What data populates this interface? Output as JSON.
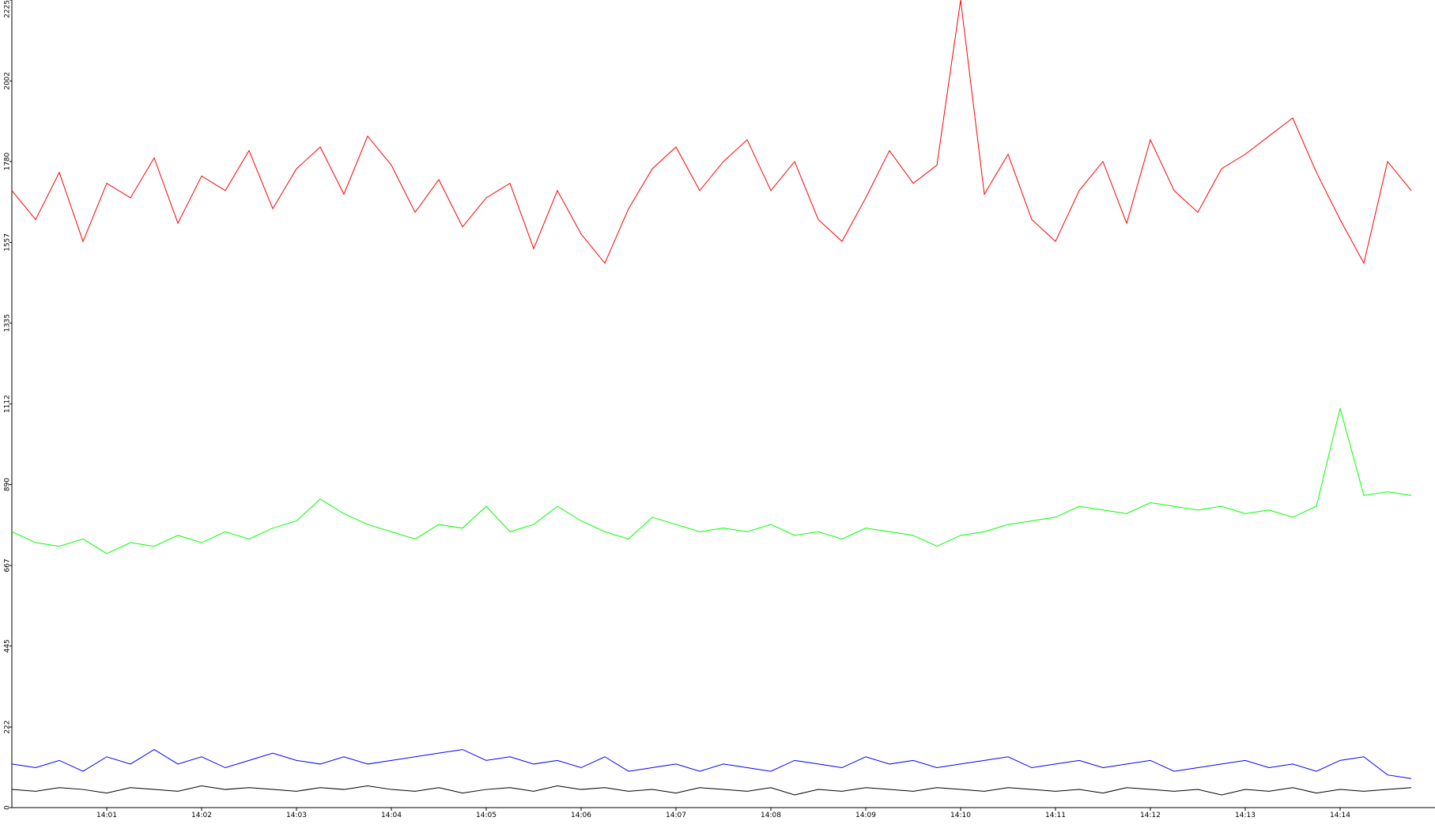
{
  "chart_data": {
    "type": "line",
    "categories": [
      null,
      null,
      null,
      null,
      "14:01",
      null,
      null,
      null,
      "14:02",
      null,
      null,
      null,
      "14:03",
      null,
      null,
      null,
      "14:04",
      null,
      null,
      null,
      "14:05",
      null,
      null,
      null,
      "14:06",
      null,
      null,
      null,
      "14:07",
      null,
      null,
      null,
      "14:08",
      null,
      null,
      null,
      "14:09",
      null,
      null,
      null,
      "14:10",
      null,
      null,
      null,
      "14:11",
      null,
      null,
      null,
      "14:12",
      null,
      null,
      null,
      "14:13",
      null,
      null,
      null,
      "14:14",
      null,
      null,
      null
    ],
    "series": [
      {
        "color": "#ff0000",
        "values": [
          1700,
          1620,
          1750,
          1560,
          1720,
          1680,
          1790,
          1610,
          1740,
          1700,
          1810,
          1650,
          1760,
          1820,
          1690,
          1850,
          1770,
          1640,
          1730,
          1600,
          1680,
          1720,
          1540,
          1700,
          1580,
          1500,
          1650,
          1760,
          1820,
          1700,
          1780,
          1840,
          1700,
          1780,
          1620,
          1560,
          1680,
          1810,
          1720,
          1770,
          2225,
          1690,
          1800,
          1620,
          1560,
          1700,
          1780,
          1610,
          1840,
          1700,
          1640,
          1760,
          1800,
          1850,
          1900,
          1750,
          1620,
          1500,
          1780,
          1700
        ]
      },
      {
        "color": "#00ff00",
        "values": [
          760,
          730,
          720,
          740,
          700,
          730,
          720,
          750,
          730,
          760,
          740,
          770,
          790,
          850,
          810,
          780,
          760,
          740,
          780,
          770,
          830,
          760,
          780,
          830,
          790,
          760,
          740,
          800,
          780,
          760,
          770,
          760,
          780,
          750,
          760,
          740,
          770,
          760,
          750,
          720,
          750,
          760,
          780,
          790,
          800,
          830,
          820,
          810,
          840,
          830,
          820,
          830,
          810,
          820,
          800,
          830,
          1100,
          860,
          870,
          860
        ]
      },
      {
        "color": "#0000ff",
        "values": [
          120,
          110,
          130,
          100,
          140,
          120,
          160,
          120,
          140,
          110,
          130,
          150,
          130,
          120,
          140,
          120,
          130,
          140,
          150,
          160,
          130,
          140,
          120,
          130,
          110,
          140,
          100,
          110,
          120,
          100,
          120,
          110,
          100,
          130,
          120,
          110,
          140,
          120,
          130,
          110,
          120,
          130,
          140,
          110,
          120,
          130,
          110,
          120,
          130,
          100,
          110,
          120,
          130,
          110,
          120,
          100,
          130,
          140,
          90,
          80
        ]
      },
      {
        "color": "#000000",
        "values": [
          50,
          45,
          55,
          50,
          40,
          55,
          50,
          45,
          60,
          50,
          55,
          50,
          45,
          55,
          50,
          60,
          50,
          45,
          55,
          40,
          50,
          55,
          45,
          60,
          50,
          55,
          45,
          50,
          40,
          55,
          50,
          45,
          55,
          35,
          50,
          45,
          55,
          50,
          45,
          55,
          50,
          45,
          55,
          50,
          45,
          50,
          40,
          55,
          50,
          45,
          50,
          35,
          50,
          45,
          55,
          40,
          50,
          45,
          50,
          55
        ]
      }
    ],
    "ylim": [
      0,
      2225
    ],
    "yticks": [
      0,
      222,
      445,
      667,
      890,
      1112,
      1335,
      1557,
      1780,
      2002,
      2225
    ]
  }
}
